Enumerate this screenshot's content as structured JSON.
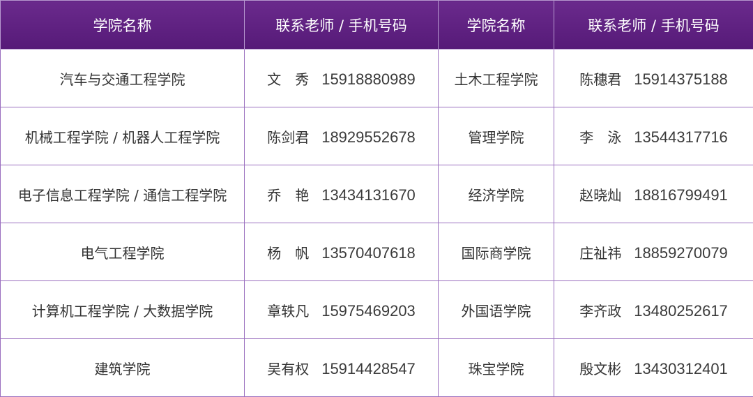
{
  "headers": [
    "学院名称",
    "联系老师 / 手机号码",
    "学院名称",
    "联系老师 / 手机号码"
  ],
  "colors": {
    "header_bg": "#5e1d7f",
    "border": "#9a6fbf"
  },
  "rows": [
    {
      "college_a": "汽车与交通工程学院",
      "teacher_a": "文　秀",
      "phone_a": "15918880989",
      "college_b": "土木工程学院",
      "teacher_b": "陈穗君",
      "phone_b": "15914375188"
    },
    {
      "college_a": "机械工程学院 / 机器人工程学院",
      "teacher_a": "陈剑君",
      "phone_a": "18929552678",
      "college_b": "管理学院",
      "teacher_b": "李　泳",
      "phone_b": "13544317716"
    },
    {
      "college_a": "电子信息工程学院 / 通信工程学院",
      "teacher_a": "乔　艳",
      "phone_a": "13434131670",
      "college_b": "经济学院",
      "teacher_b": "赵晓灿",
      "phone_b": "18816799491"
    },
    {
      "college_a": "电气工程学院",
      "teacher_a": "杨　帆",
      "phone_a": "13570407618",
      "college_b": "国际商学院",
      "teacher_b": "庄祉祎",
      "phone_b": "18859270079"
    },
    {
      "college_a": "计算机工程学院 / 大数据学院",
      "teacher_a": "章轶凡",
      "phone_a": "15975469203",
      "college_b": "外国语学院",
      "teacher_b": "李齐政",
      "phone_b": "13480252617"
    },
    {
      "college_a": "建筑学院",
      "teacher_a": "吴有权",
      "phone_a": "15914428547",
      "college_b": "珠宝学院",
      "teacher_b": "殷文彬",
      "phone_b": "13430312401"
    }
  ]
}
